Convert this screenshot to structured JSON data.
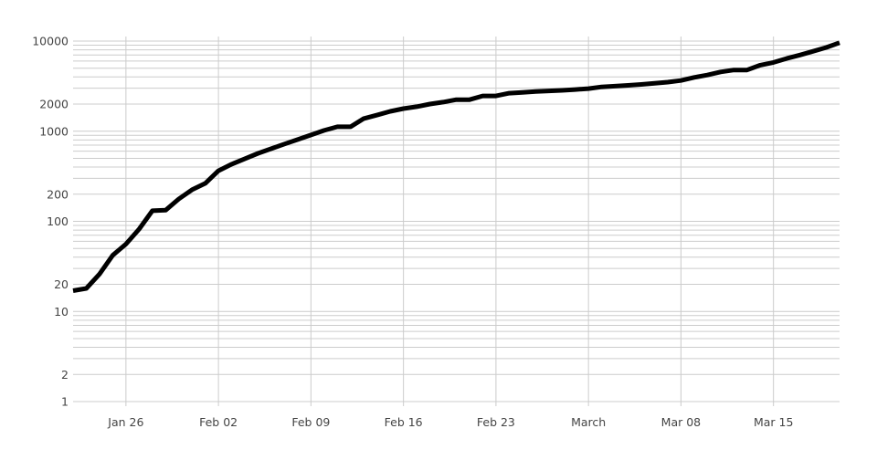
{
  "chart_data": {
    "type": "line",
    "title": "",
    "xlabel": "",
    "ylabel": "",
    "y_scale": "log",
    "ylim": [
      1,
      10000
    ],
    "xlim": [
      "2020-01-22",
      "2020-03-20"
    ],
    "grid": true,
    "y_ticks": [
      1,
      2,
      10,
      20,
      100,
      200,
      1000,
      2000,
      10000
    ],
    "y_tick_labels": [
      "1",
      "2",
      "10",
      "20",
      "100",
      "200",
      "1000",
      "2000",
      "10000"
    ],
    "x_ticks": [
      "2020-01-26",
      "2020-02-02",
      "2020-02-09",
      "2020-02-16",
      "2020-02-23",
      "2020-03-01",
      "2020-03-08",
      "2020-03-15"
    ],
    "x_tick_labels": [
      "Jan 26",
      "Feb 02",
      "Feb 09",
      "Feb 16",
      "Feb 23",
      "March",
      "Mar 08",
      "Mar 15"
    ],
    "line_color": "#000000",
    "grid_color": "#cccccc",
    "series": [
      {
        "x": [
          "2020-01-22",
          "2020-01-23",
          "2020-01-24",
          "2020-01-25",
          "2020-01-26",
          "2020-01-27",
          "2020-01-28",
          "2020-01-29",
          "2020-01-30",
          "2020-01-31",
          "2020-02-01",
          "2020-02-02",
          "2020-02-03",
          "2020-02-04",
          "2020-02-05",
          "2020-02-06",
          "2020-02-07",
          "2020-02-08",
          "2020-02-09",
          "2020-02-10",
          "2020-02-11",
          "2020-02-12",
          "2020-02-13",
          "2020-02-14",
          "2020-02-15",
          "2020-02-16",
          "2020-02-17",
          "2020-02-18",
          "2020-02-19",
          "2020-02-20",
          "2020-02-21",
          "2020-02-22",
          "2020-02-23",
          "2020-02-24",
          "2020-02-25",
          "2020-02-26",
          "2020-02-27",
          "2020-02-28",
          "2020-02-29",
          "2020-03-01",
          "2020-03-02",
          "2020-03-03",
          "2020-03-04",
          "2020-03-05",
          "2020-03-06",
          "2020-03-07",
          "2020-03-08",
          "2020-03-09",
          "2020-03-10",
          "2020-03-11",
          "2020-03-12",
          "2020-03-13",
          "2020-03-14",
          "2020-03-15",
          "2020-03-16",
          "2020-03-17",
          "2020-03-18",
          "2020-03-19",
          "2020-03-20"
        ],
        "values": [
          17,
          18,
          26,
          42,
          56,
          82,
          131,
          133,
          177,
          224,
          264,
          364,
          430,
          495,
          568,
          640,
          720,
          808,
          908,
          1020,
          1120,
          1120,
          1380,
          1510,
          1660,
          1780,
          1870,
          2000,
          2100,
          2240,
          2240,
          2460,
          2460,
          2640,
          2700,
          2760,
          2800,
          2840,
          2900,
          2970,
          3100,
          3160,
          3230,
          3300,
          3400,
          3500,
          3650,
          3950,
          4200,
          4550,
          4770,
          4770,
          5400,
          5800,
          6400,
          7000,
          7700,
          8500,
          9600
        ]
      }
    ]
  }
}
